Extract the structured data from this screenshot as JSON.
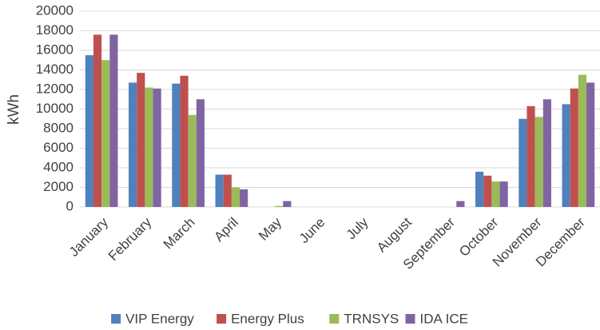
{
  "chart_data": {
    "type": "bar",
    "y_label": "kWh",
    "categories": [
      "January",
      "February",
      "March",
      "April",
      "May",
      "June",
      "July",
      "August",
      "September",
      "October",
      "November",
      "December"
    ],
    "series": [
      {
        "name": "VIP Energy",
        "color": "#4f81bd",
        "values": [
          15500,
          12700,
          12600,
          3300,
          0,
          0,
          0,
          0,
          0,
          3600,
          9000,
          10500
        ]
      },
      {
        "name": "Energy Plus",
        "color": "#c0504d",
        "values": [
          17600,
          13700,
          13400,
          3300,
          0,
          0,
          0,
          0,
          0,
          3200,
          10300,
          12100
        ]
      },
      {
        "name": "TRNSYS",
        "color": "#9bbb59",
        "values": [
          15000,
          12200,
          9400,
          2000,
          100,
          0,
          0,
          0,
          0,
          2600,
          9200,
          13500
        ]
      },
      {
        "name": "IDA ICE",
        "color": "#8064a2",
        "values": [
          17600,
          12100,
          11000,
          1800,
          600,
          0,
          0,
          0,
          600,
          2600,
          11000,
          12700
        ]
      }
    ],
    "ylim": [
      0,
      20000
    ],
    "yticks": [
      0,
      2000,
      4000,
      6000,
      8000,
      10000,
      12000,
      14000,
      16000,
      18000,
      20000
    ],
    "grid": true,
    "legend": "bottom"
  }
}
